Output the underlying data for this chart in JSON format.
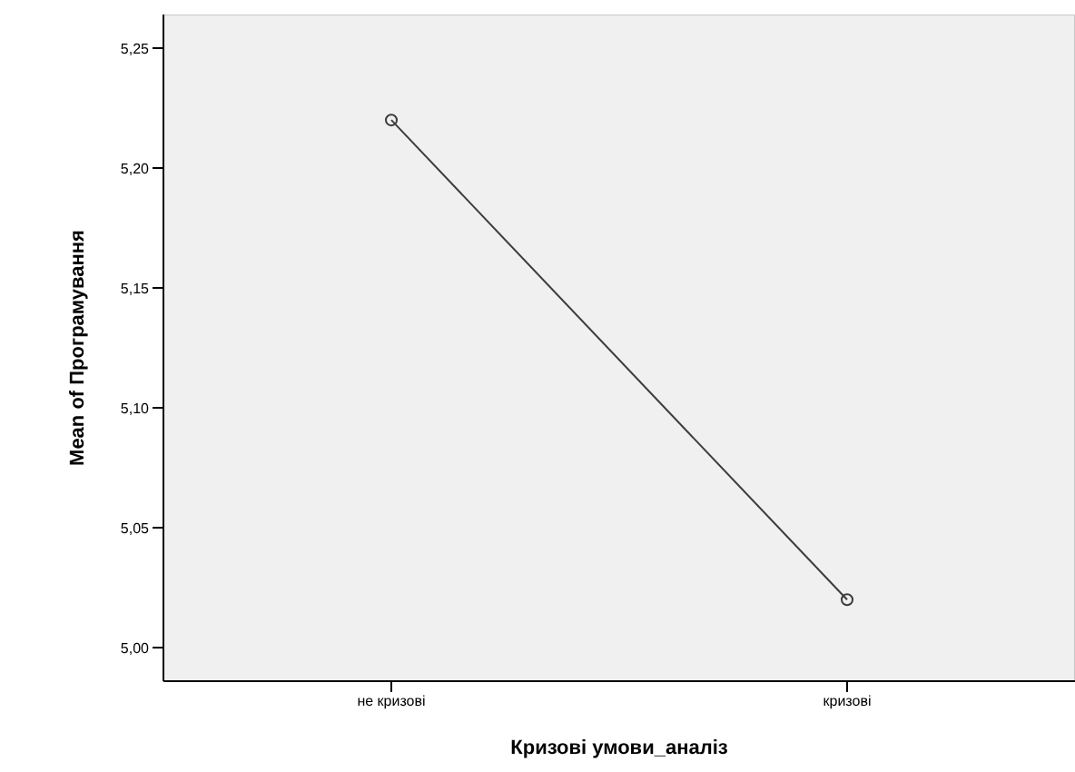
{
  "chart_data": {
    "type": "line",
    "xlabel": "Кризові умови_аналіз",
    "ylabel": "Mean of Програмування",
    "categories": [
      "не кризові",
      "кризові"
    ],
    "series": [
      {
        "color": "#3c3c3c",
        "values": [
          5.22,
          5.02
        ]
      }
    ],
    "ylim": [
      4.986,
      5.264
    ],
    "yticks": [
      {
        "value": 5.0,
        "label": "5,00"
      },
      {
        "value": 5.05,
        "label": "5,05"
      },
      {
        "value": 5.1,
        "label": "5,10"
      },
      {
        "value": 5.15,
        "label": "5,15"
      },
      {
        "value": 5.2,
        "label": "5,20"
      },
      {
        "value": 5.25,
        "label": "5,25"
      }
    ],
    "marker": "circle",
    "line_style": "solid",
    "grid": false,
    "legend": false
  }
}
